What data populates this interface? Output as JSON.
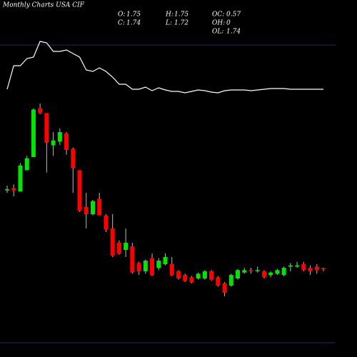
{
  "chart_data": {
    "type": "candlestick",
    "title": "Monthly Charts USA CIF",
    "stats": [
      {
        "label": "O:",
        "value": 1.75
      },
      {
        "label": "H:",
        "value": 1.75
      },
      {
        "label": "OC:",
        "value": 0.57
      },
      {
        "label": "C:",
        "value": 1.74
      },
      {
        "label": "L:",
        "value": 1.72
      },
      {
        "label": "OH:",
        "value": 0
      },
      {
        "label": "OL:",
        "value": 1.74
      }
    ],
    "up_color": "#00e600",
    "down_color": "#ff0000",
    "ylim": [
      1.12,
      3.64
    ],
    "open": [
      2.4,
      2.42,
      2.39,
      2.57,
      2.68,
      3.09,
      3.05,
      2.78,
      2.81,
      2.88,
      2.75,
      2.57,
      2.26,
      2.2,
      2.33,
      2.19,
      2.08,
      1.96,
      1.9,
      1.93,
      1.79,
      1.72,
      1.83,
      1.75,
      1.78,
      1.78,
      1.72,
      1.69,
      1.67,
      1.66,
      1.66,
      1.72,
      1.67,
      1.62,
      1.6,
      1.66,
      1.71,
      1.73,
      1.72,
      1.72,
      1.69,
      1.7,
      1.69,
      1.76,
      1.76,
      1.78,
      1.75,
      1.76,
      1.75
    ],
    "high": [
      2.44,
      2.45,
      2.63,
      2.69,
      3.09,
      3.13,
      3.05,
      2.89,
      2.92,
      2.89,
      2.76,
      2.57,
      2.38,
      2.32,
      2.38,
      2.2,
      2.2,
      1.98,
      2.08,
      1.96,
      1.8,
      1.82,
      1.87,
      1.83,
      1.87,
      1.84,
      1.73,
      1.7,
      1.68,
      1.71,
      1.73,
      1.73,
      1.68,
      1.63,
      1.7,
      1.74,
      1.75,
      1.75,
      1.76,
      1.73,
      1.72,
      1.74,
      1.76,
      1.79,
      1.8,
      1.8,
      1.77,
      1.78,
      1.75
    ],
    "low": [
      2.38,
      2.35,
      2.39,
      2.57,
      2.68,
      3.04,
      2.55,
      2.69,
      2.78,
      2.7,
      2.38,
      2.22,
      2.08,
      2.19,
      2.19,
      2.05,
      1.84,
      1.86,
      1.84,
      1.7,
      1.69,
      1.7,
      1.68,
      1.73,
      1.77,
      1.68,
      1.65,
      1.63,
      1.62,
      1.65,
      1.65,
      1.64,
      1.59,
      1.51,
      1.59,
      1.65,
      1.7,
      1.7,
      1.71,
      1.66,
      1.67,
      1.69,
      1.68,
      1.72,
      1.75,
      1.72,
      1.69,
      1.7,
      1.72
    ],
    "close": [
      2.41,
      2.4,
      2.61,
      2.67,
      3.08,
      3.05,
      2.8,
      2.82,
      2.89,
      2.74,
      2.59,
      2.23,
      2.2,
      2.31,
      2.19,
      2.07,
      1.85,
      1.87,
      1.96,
      1.71,
      1.72,
      1.81,
      1.69,
      1.81,
      1.84,
      1.69,
      1.66,
      1.64,
      1.63,
      1.7,
      1.72,
      1.65,
      1.6,
      1.54,
      1.69,
      1.73,
      1.73,
      1.72,
      1.73,
      1.67,
      1.71,
      1.73,
      1.75,
      1.77,
      1.77,
      1.73,
      1.72,
      1.73,
      1.74
    ],
    "indicator": {
      "color": "#ffffff",
      "ylim": [
        0,
        80
      ],
      "values": [
        5,
        38,
        38,
        48,
        50,
        72,
        70,
        58,
        58,
        60,
        55,
        50,
        32,
        30,
        35,
        30,
        22,
        12,
        12,
        5,
        5,
        8,
        3,
        7,
        4,
        2,
        2,
        0,
        2,
        4,
        3,
        1,
        0,
        3,
        4,
        4,
        4,
        3,
        4,
        5,
        6,
        6,
        6,
        5,
        5,
        5,
        5,
        5,
        5
      ]
    }
  }
}
